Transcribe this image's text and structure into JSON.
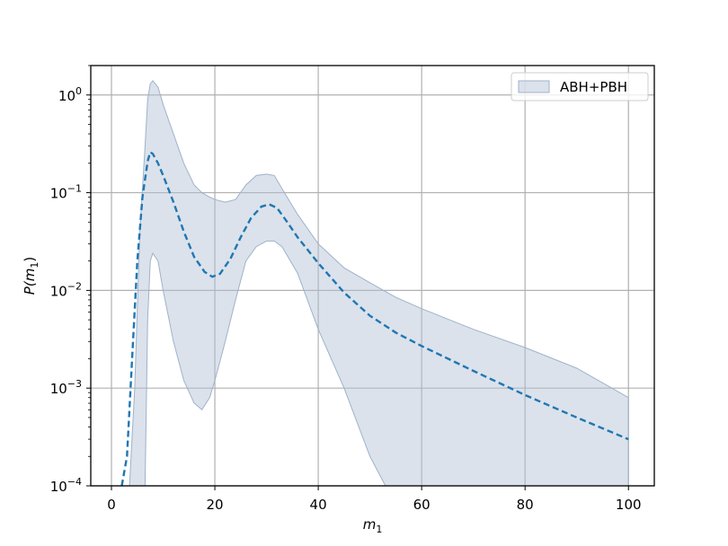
{
  "chart_data": {
    "type": "line",
    "xlim": [
      -4,
      105
    ],
    "ylim": [
      0.0001,
      2
    ],
    "yscale": "log",
    "grid": true,
    "legend_position": "top-right",
    "xticks": [
      0,
      20,
      40,
      60,
      80,
      100
    ],
    "xtick_labels": [
      "0",
      "20",
      "40",
      "60",
      "80",
      "100"
    ],
    "yticks": [
      0.0001,
      0.001,
      0.01,
      0.1,
      1
    ],
    "ytick_labels": [
      {
        "base": "10",
        "exp": "−4"
      },
      {
        "base": "10",
        "exp": "−3"
      },
      {
        "base": "10",
        "exp": "−2"
      },
      {
        "base": "10",
        "exp": "−1"
      },
      {
        "base": "10",
        "exp": "0"
      }
    ],
    "xlabel": {
      "main": "m",
      "sub": "1"
    },
    "ylabel": {
      "pre": "P(m",
      "sub": "1",
      "post": ")"
    },
    "colors": {
      "line": "#1f77b4",
      "band_fill": "#b0bfd3",
      "band_edge": "#9fb2cb",
      "grid": "#b0b0b0"
    },
    "series": [
      {
        "name": "",
        "style": "dashed",
        "x": [
          2.0,
          3.0,
          4.0,
          5.0,
          6.0,
          7.0,
          7.5,
          8.0,
          9.0,
          10.0,
          12.0,
          14.0,
          16.0,
          18.0,
          19.5,
          21.0,
          23.0,
          25.0,
          27.0,
          29.0,
          30.5,
          32.0,
          34.0,
          36.0,
          40.0,
          45.0,
          50.0,
          55.0,
          60.0,
          70.0,
          80.0,
          90.0,
          100.0
        ],
        "y": [
          0.0001,
          0.0002,
          0.002,
          0.02,
          0.09,
          0.21,
          0.26,
          0.25,
          0.2,
          0.15,
          0.08,
          0.04,
          0.022,
          0.0155,
          0.0138,
          0.0148,
          0.021,
          0.035,
          0.055,
          0.072,
          0.076,
          0.07,
          0.05,
          0.035,
          0.019,
          0.0095,
          0.0055,
          0.0037,
          0.0027,
          0.0015,
          0.00085,
          0.0005,
          0.0003
        ]
      }
    ],
    "band": {
      "name": "ABH+PBH",
      "x": [
        3.5,
        4.5,
        5.5,
        6.5,
        7.0,
        7.5,
        8.0,
        9.0,
        10.0,
        12.0,
        14.0,
        16.0,
        17.5,
        19.0,
        20.0,
        22.0,
        24.0,
        26.0,
        28.0,
        30.0,
        31.5,
        33.0,
        36.0,
        40.0,
        45.0,
        50.0,
        55.0,
        60.0,
        70.0,
        80.0,
        90.0,
        100.0
      ],
      "upper": [
        0.0001,
        0.001,
        0.04,
        0.3,
        0.9,
        1.3,
        1.4,
        1.2,
        0.8,
        0.4,
        0.2,
        0.12,
        0.1,
        0.09,
        0.085,
        0.08,
        0.085,
        0.12,
        0.15,
        0.155,
        0.15,
        0.11,
        0.06,
        0.03,
        0.017,
        0.012,
        0.0085,
        0.0065,
        0.004,
        0.0026,
        0.0016,
        0.0008
      ],
      "x_lower": [
        3.5,
        4.5,
        5.5,
        6.5,
        7.0,
        7.5,
        8.0,
        9.0,
        10.0,
        12.0,
        14.0,
        16.0,
        17.5,
        19.0,
        20.0,
        22.0,
        24.0,
        26.0,
        28.0,
        30.0,
        31.5,
        33.0,
        36.0,
        40.0,
        45.0,
        50.0,
        53.0,
        100.0
      ],
      "lower": [
        0.0001,
        0.0001,
        0.0001,
        0.0001,
        0.005,
        0.02,
        0.024,
        0.02,
        0.01,
        0.003,
        0.0012,
        0.0007,
        0.0006,
        0.0008,
        0.0012,
        0.003,
        0.008,
        0.02,
        0.028,
        0.032,
        0.032,
        0.028,
        0.015,
        0.004,
        0.001,
        0.0002,
        0.0001,
        0.0001
      ]
    }
  }
}
